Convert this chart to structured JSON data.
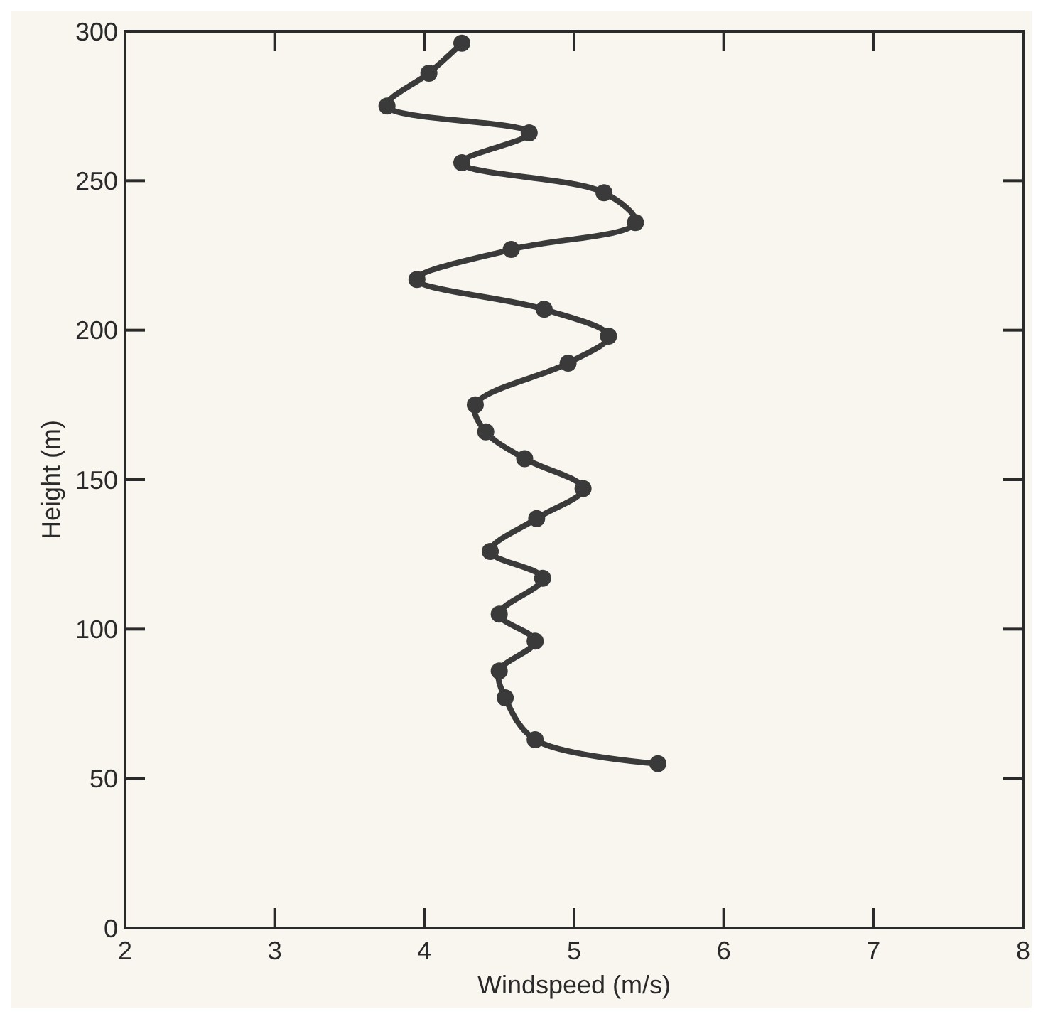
{
  "chart_data": {
    "type": "line",
    "xlabel": "Windspeed (m/s)",
    "ylabel": "Height (m)",
    "x": [
      5.56,
      4.74,
      4.54,
      4.5,
      4.74,
      4.5,
      4.79,
      4.44,
      4.75,
      5.06,
      4.67,
      4.41,
      4.34,
      4.96,
      5.23,
      4.8,
      3.95,
      4.58,
      5.41,
      5.2,
      4.25,
      4.7,
      3.75,
      4.03,
      4.25
    ],
    "series": [
      {
        "color": "#3a3a3a",
        "values": [
          55,
          63,
          77,
          86,
          96,
          105,
          117,
          126,
          137,
          147,
          157,
          166,
          175,
          189,
          198,
          207,
          217,
          227,
          236,
          246,
          256,
          266,
          275,
          286,
          296
        ]
      }
    ],
    "xlim": [
      2,
      8
    ],
    "xticks": [
      2,
      3,
      4,
      5,
      6,
      7,
      8
    ],
    "ylim": [
      0,
      300
    ],
    "yticks": [
      0,
      50,
      100,
      150,
      200,
      250,
      300
    ],
    "marker": "circle",
    "line_style": "solid"
  }
}
